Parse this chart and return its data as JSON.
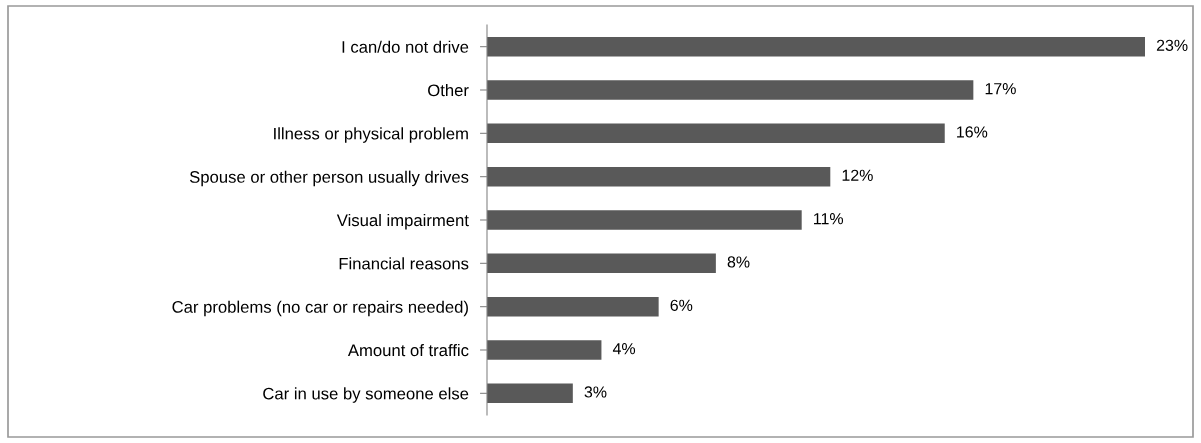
{
  "chart_data": {
    "type": "bar",
    "orientation": "horizontal",
    "categories": [
      "I can/do not drive",
      "Other",
      "Illness or physical problem",
      "Spouse or other person usually drives",
      "Visual impairment",
      "Financial reasons",
      "Car problems (no car or repairs needed)",
      "Amount of traffic",
      "Car in use by someone else"
    ],
    "values": [
      23,
      17,
      16,
      12,
      11,
      8,
      6,
      4,
      3
    ],
    "value_labels": [
      "23%",
      "17%",
      "16%",
      "12%",
      "11%",
      "8%",
      "6%",
      "4%",
      "3%"
    ],
    "color": "#595959",
    "grid": false,
    "legend": false
  }
}
